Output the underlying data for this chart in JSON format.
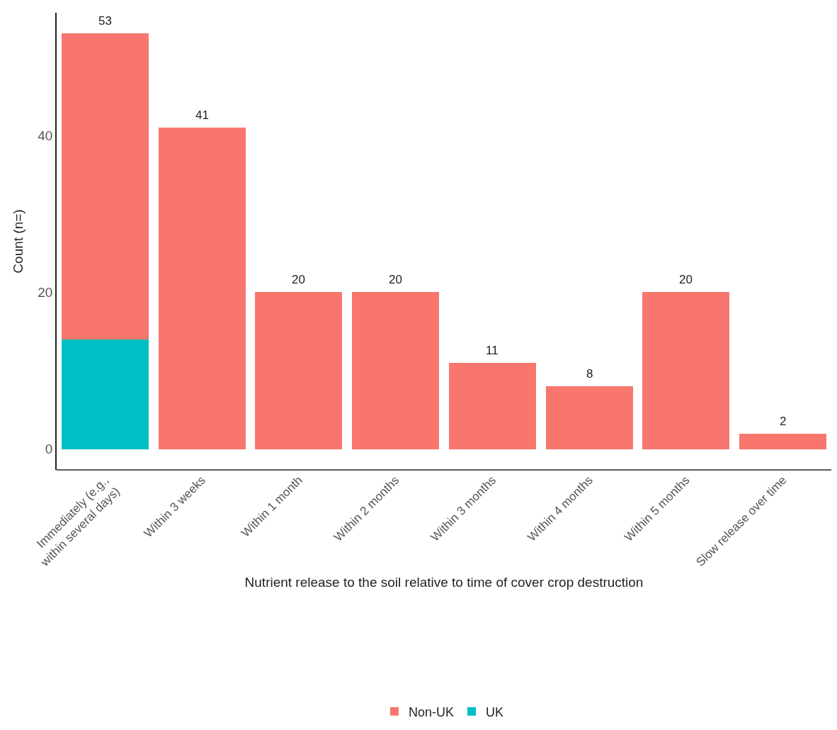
{
  "chart_data": {
    "type": "bar",
    "xlabel": "Nutrient release to the soil relative to time of cover crop destruction",
    "ylabel": "Count (n=)",
    "categories": [
      "Immediately (e.g.,\nwithin several days)",
      "Within 3 weeks",
      "Within 1 month",
      "Within 2 months",
      "Within 3 months",
      "Within 4 months",
      "Within 5 months",
      "Slow release over time"
    ],
    "stacked": true,
    "series": [
      {
        "name": "UK",
        "color": "#00bfc4",
        "values": [
          14,
          null,
          null,
          null,
          null,
          null,
          null,
          null
        ]
      },
      {
        "name": "Non-UK",
        "color": "#f8766d",
        "values": [
          39,
          41,
          20,
          20,
          11,
          8,
          20,
          2
        ]
      }
    ],
    "totals": [
      "53",
      "41",
      "20",
      "20",
      "11",
      "8",
      "20",
      "2"
    ],
    "ylim": [
      -2.65,
      55.65
    ],
    "yticks": [
      0,
      20,
      40
    ],
    "grid": false,
    "legend": "bottom"
  }
}
